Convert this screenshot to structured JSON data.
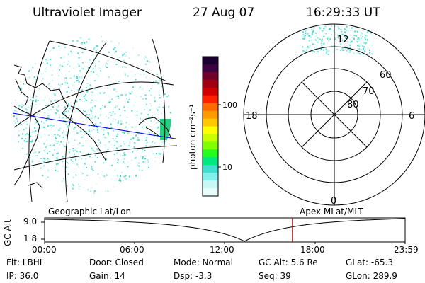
{
  "header": {
    "instrument": "Ultraviolet Imager",
    "date": "27 Aug 07",
    "time": "16:29:33 UT"
  },
  "colorbar": {
    "label": "photon cm⁻²s⁻¹",
    "ticks": [
      "100",
      "10"
    ],
    "colors": [
      "#1a0030",
      "#3a0040",
      "#70002a",
      "#a00012",
      "#d00000",
      "#ff2000",
      "#ff6a00",
      "#ff9a00",
      "#ffc800",
      "#ffff00",
      "#c8ff00",
      "#80ff00",
      "#20ff20",
      "#00e880",
      "#40e0d0",
      "#80f0ec",
      "#c8f8f6",
      "#e8fcfb"
    ]
  },
  "left_map": {
    "frame": "Geographic Lat/Lon"
  },
  "right_map": {
    "frame": "Apex MLat/MLT",
    "lat_labels": [
      "60",
      "70",
      "80"
    ],
    "mlt_labels": [
      "12",
      "18",
      "6",
      "0"
    ]
  },
  "timeline": {
    "ylabel": "GC Alt",
    "y_ticks": [
      "9.0",
      "1.8"
    ],
    "x_ticks": [
      "00:00",
      "06:00",
      "12:00",
      "18:00",
      "23:59"
    ],
    "marker_hours": 16.49
  },
  "status": {
    "flt": "Flt: LBHL",
    "ip": "IP: 36.0",
    "door": "Door: Closed",
    "gain": "Gain: 14",
    "mode": "Mode: Normal",
    "dsp": "Dsp:    -3.3",
    "gc_alt": "GC Alt: 5.6 Re",
    "seq": "Seq: 39",
    "glat": "GLat: -65.3",
    "glon": "GLon: 289.9"
  }
}
